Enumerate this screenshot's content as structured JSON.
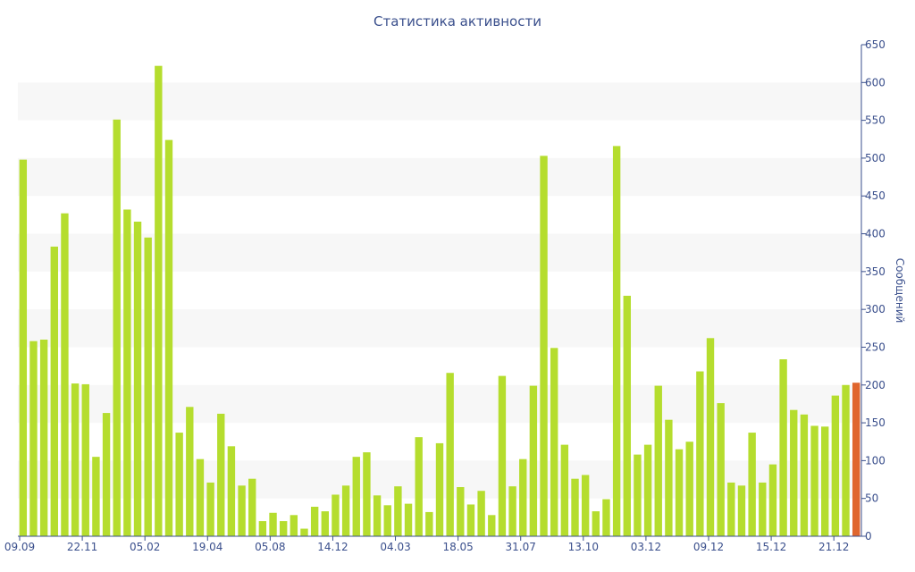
{
  "chart_data": {
    "type": "bar",
    "title": "Статистика активности",
    "ylabel": "Сообщений",
    "xlabel": "",
    "ylim": [
      0,
      650
    ],
    "y_ticks": [
      0,
      50,
      100,
      150,
      200,
      250,
      300,
      350,
      400,
      450,
      500,
      550,
      600,
      650
    ],
    "x_tick_labels": [
      "09.09",
      "22.11",
      "05.02",
      "19.04",
      "05.08",
      "14.12",
      "04.03",
      "18.05",
      "31.07",
      "13.10",
      "03.12",
      "09.12",
      "15.12",
      "21.12"
    ],
    "grid": "alternating horizontal bands",
    "y_axis_position": "right",
    "colors": {
      "bar": "#b5dd2e",
      "highlight": "#e0662e",
      "axis": "#3a4f8c",
      "band": "#f7f7f7"
    },
    "values": [
      498,
      258,
      260,
      383,
      427,
      202,
      201,
      105,
      163,
      551,
      432,
      416,
      395,
      622,
      524,
      137,
      171,
      102,
      71,
      162,
      119,
      67,
      76,
      20,
      31,
      20,
      28,
      10,
      39,
      33,
      55,
      67,
      105,
      111,
      54,
      41,
      66,
      43,
      131,
      32,
      123,
      216,
      65,
      42,
      60,
      28,
      212,
      66,
      102,
      199,
      503,
      249,
      121,
      76,
      81,
      33,
      49,
      516,
      318,
      108,
      121,
      199,
      154,
      115,
      125,
      218,
      262,
      176,
      71,
      67,
      137,
      71,
      95,
      234,
      167,
      161,
      146,
      145,
      186,
      200,
      203
    ],
    "highlight_index": 80
  }
}
